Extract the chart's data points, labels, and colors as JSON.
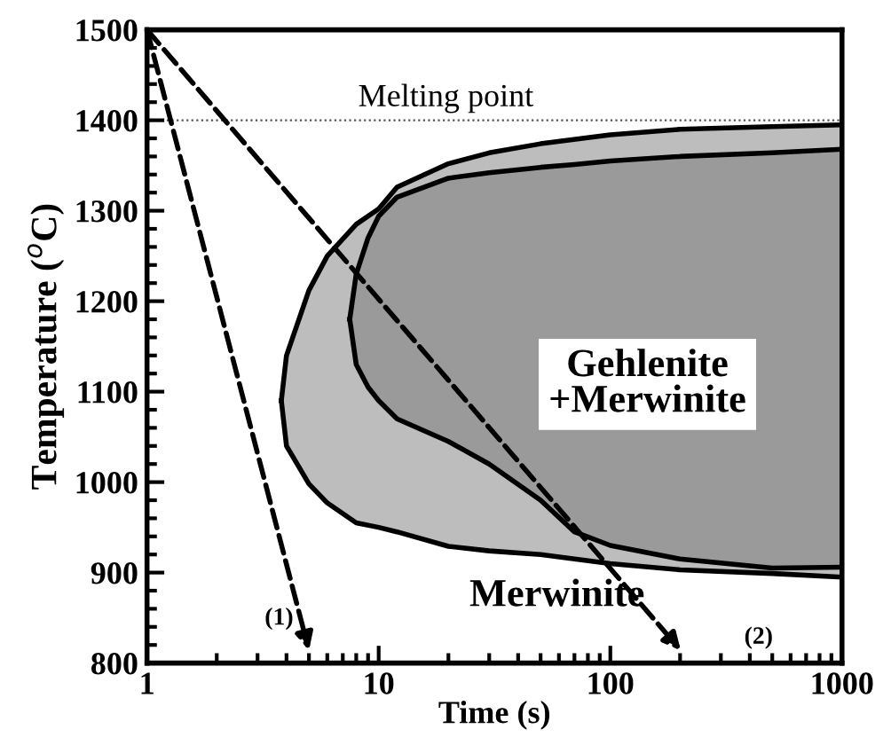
{
  "chart_data": {
    "type": "area",
    "xlabel": "Time (s)",
    "ylabel": "Temperature ($^{o}$C)",
    "log": "x",
    "xlim": [
      1,
      1000
    ],
    "xticks": [
      1,
      10,
      100,
      1000
    ],
    "ylim": [
      800,
      1500
    ],
    "yticks": [
      800,
      900,
      1000,
      1100,
      1200,
      1300,
      1400,
      1500
    ],
    "grid": false,
    "series": [
      {
        "type": "area",
        "color": "#bdbdbd",
        "x": [
          3.8,
          4,
          5,
          6,
          8,
          10,
          12,
          20,
          30,
          50,
          100,
          200,
          500,
          1000
        ],
        "values": [
          1090,
          1140,
          1212,
          1250,
          1285,
          1302,
          1326,
          1352,
          1364,
          1374,
          1384,
          1390,
          1393,
          1395
        ]
      },
      {
        "type": "area",
        "color": "#9a9a9a",
        "x": [
          7.5,
          8,
          9,
          10,
          12,
          20,
          30,
          50,
          70,
          100,
          200,
          500,
          1000
        ],
        "values": [
          1180,
          1230,
          1270,
          1294,
          1315,
          1336,
          1342,
          1348,
          1351,
          1355,
          1360,
          1364,
          1368
        ]
      },
      {
        "type": "line",
        "color": "#000000",
        "x": [
          3.8,
          4,
          5,
          6,
          8,
          10,
          12,
          20,
          30,
          50,
          100,
          200,
          500,
          1000
        ],
        "values": [
          1090,
          1040,
          998,
          977,
          955,
          950,
          945,
          929,
          924,
          920,
          910,
          903,
          899,
          895
        ]
      },
      {
        "type": "line",
        "color": "#000000",
        "x": [
          7.5,
          8,
          9,
          10,
          12,
          20,
          30,
          50,
          70,
          100,
          200,
          500,
          1000
        ],
        "values": [
          1180,
          1130,
          1105,
          1090,
          1070,
          1045,
          1020,
          980,
          945,
          930,
          915,
          905,
          906
        ]
      }
    ],
    "ref_lines": [
      {
        "axis": "y",
        "value": 1400,
        "label": "Melting point",
        "line_style": "dotted",
        "color": "#555555"
      }
    ],
    "annotations": [
      "Gehlenite\n+Merwinite",
      "Merwinite",
      "(1)",
      "(2)"
    ]
  }
}
